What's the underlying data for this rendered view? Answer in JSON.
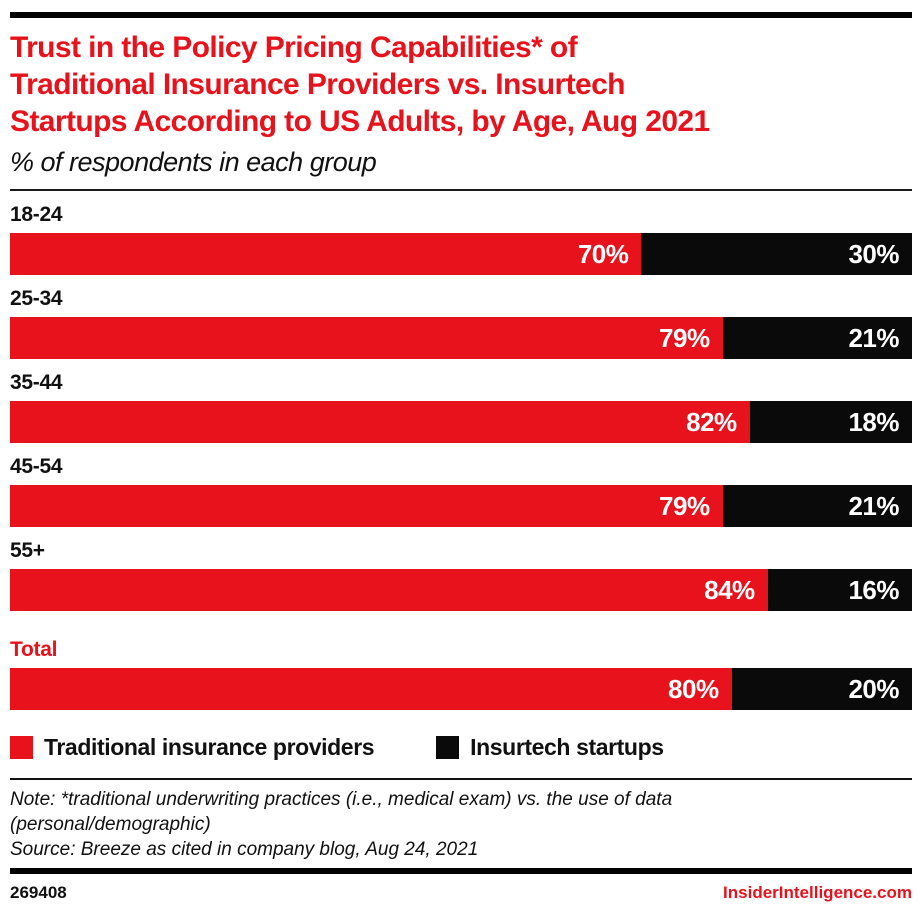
{
  "brand": {
    "accent_red": "#e8121c",
    "bar_black": "#0a0a0a"
  },
  "header": {
    "title_lines": [
      "Trust in the Policy Pricing Capabilities* of",
      "Traditional Insurance Providers vs. Insurtech",
      "Startups According to US Adults, by Age, Aug 2021"
    ],
    "subtitle": "% of respondents in each group"
  },
  "chart_data": {
    "type": "bar",
    "orientation": "horizontal-stacked",
    "title": "Trust in the Policy Pricing Capabilities* of Traditional Insurance Providers vs. Insurtech Startups According to US Adults, by Age, Aug 2021",
    "subtitle": "% of respondents in each group",
    "categories": [
      "18-24",
      "25-34",
      "35-44",
      "45-54",
      "55+",
      "Total"
    ],
    "highlighted_category": "Total",
    "series": [
      {
        "name": "Traditional insurance providers",
        "color": "#e8121c",
        "values": [
          70,
          79,
          82,
          79,
          84,
          80
        ]
      },
      {
        "name": "Insurtech startups",
        "color": "#0a0a0a",
        "values": [
          30,
          21,
          18,
          21,
          16,
          20
        ]
      }
    ],
    "value_suffix": "%",
    "xlim": [
      0,
      100
    ],
    "grid": false,
    "legend_position": "bottom",
    "value_labels": "inside-right-white-bold"
  },
  "legend": [
    {
      "label": "Traditional insurance providers",
      "color": "#e8121c"
    },
    {
      "label": "Insurtech startups",
      "color": "#0a0a0a"
    }
  ],
  "notes": {
    "note_line1": "Note: *traditional underwriting practices (i.e., medical exam) vs. the use of data",
    "note_line2": "(personal/demographic)",
    "source": "Source: Breeze as cited in company blog, Aug 24, 2021"
  },
  "footer": {
    "chart_id": "269408",
    "site": "InsiderIntelligence.com"
  }
}
